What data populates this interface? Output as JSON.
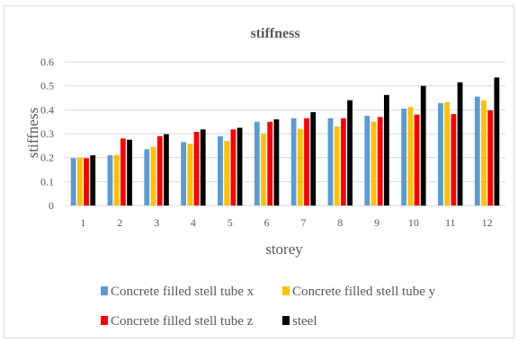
{
  "chart_data": {
    "type": "bar",
    "title": "stiffness",
    "xlabel": "storey",
    "ylabel": "stiffness",
    "ylim": [
      0,
      0.6
    ],
    "yticks": [
      "0",
      "0.1",
      "0.2",
      "0.3",
      "0.4",
      "0.5",
      "0.6"
    ],
    "grid": true,
    "legend_position": "bottom",
    "categories": [
      "1",
      "2",
      "3",
      "4",
      "5",
      "6",
      "7",
      "8",
      "9",
      "10",
      "11",
      "12"
    ],
    "series": [
      {
        "name": "Concrete filled stell tube x",
        "color": "#5b9bd5",
        "values": [
          0.198,
          0.21,
          0.235,
          0.265,
          0.29,
          0.35,
          0.365,
          0.365,
          0.375,
          0.405,
          0.428,
          0.455
        ]
      },
      {
        "name": "Concrete filled stell tube y",
        "color": "#ffc000",
        "values": [
          0.2,
          0.212,
          0.245,
          0.258,
          0.27,
          0.3,
          0.32,
          0.33,
          0.35,
          0.412,
          0.432,
          0.44
        ]
      },
      {
        "name": "Concrete filled stell tube z",
        "color": "#ff0000",
        "values": [
          0.198,
          0.28,
          0.29,
          0.308,
          0.318,
          0.35,
          0.365,
          0.365,
          0.37,
          0.38,
          0.382,
          0.398
        ]
      },
      {
        "name": "steel",
        "color": "#000000",
        "values": [
          0.21,
          0.275,
          0.298,
          0.318,
          0.325,
          0.36,
          0.39,
          0.44,
          0.462,
          0.5,
          0.515,
          0.535
        ]
      }
    ]
  }
}
